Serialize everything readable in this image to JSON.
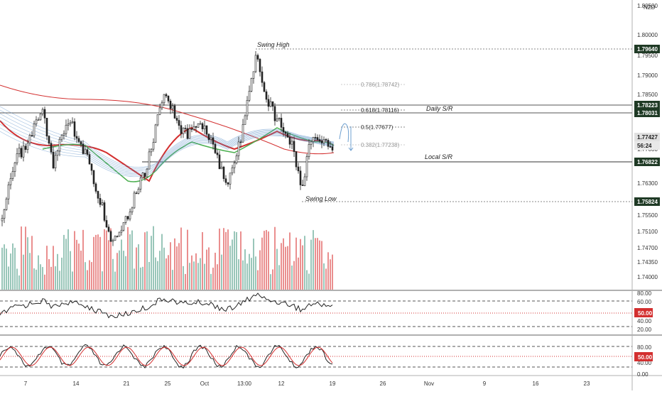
{
  "currency_label": "NZD",
  "price_axis": {
    "ticks": [
      "1.80500",
      "1.80000",
      "1.79500",
      "1.79000",
      "1.78500",
      "1.77000",
      "1.76300",
      "1.75500",
      "1.75100",
      "1.74700",
      "1.74350",
      "1.74000"
    ],
    "badges": [
      {
        "text": "1.79640",
        "kind": "dark"
      },
      {
        "text": "1.78223",
        "kind": "dark"
      },
      {
        "text": "1.78031",
        "kind": "dark"
      },
      {
        "text": "1.77427",
        "kind": "gray"
      },
      {
        "text": "56:24",
        "kind": "timer"
      },
      {
        "text": "1.76822",
        "kind": "dark"
      },
      {
        "text": "1.75824",
        "kind": "dark"
      }
    ]
  },
  "annotations": {
    "swing_high": "Swing High",
    "swing_low": "Swing Low",
    "daily_sr": "Daily S/R",
    "local_sr": "Local S/R"
  },
  "fib_levels": [
    {
      "label": "0.786(1.78742)",
      "faded": true
    },
    {
      "label": "0.618(1.78116)",
      "faded": false
    },
    {
      "label": "0.5(1.77677)",
      "faded": false
    },
    {
      "label": "0.382(1.77238)",
      "faded": true
    }
  ],
  "rsi_pane": {
    "ticks": [
      "80.00",
      "60.00",
      "40.00",
      "20.00"
    ],
    "badge": "50.00"
  },
  "stoch_pane": {
    "ticks": [
      "80.00",
      "40.00",
      "0.00"
    ],
    "badge": "50.00"
  },
  "time_axis": [
    "7",
    "14",
    "21",
    "25",
    "Oct",
    "13:00",
    "12",
    "19",
    "26",
    "Nov",
    "9",
    "16",
    "23"
  ],
  "colors": {
    "badge_dark": "#1f3a25",
    "badge_red": "#d32f2f",
    "ema_red": "#d32f2f",
    "ema_green": "#4caf50",
    "ribbon_blue": "#5b8fc9",
    "candle": "#222222",
    "volume_green": "#7fb8a8",
    "volume_red": "#e57373"
  }
}
